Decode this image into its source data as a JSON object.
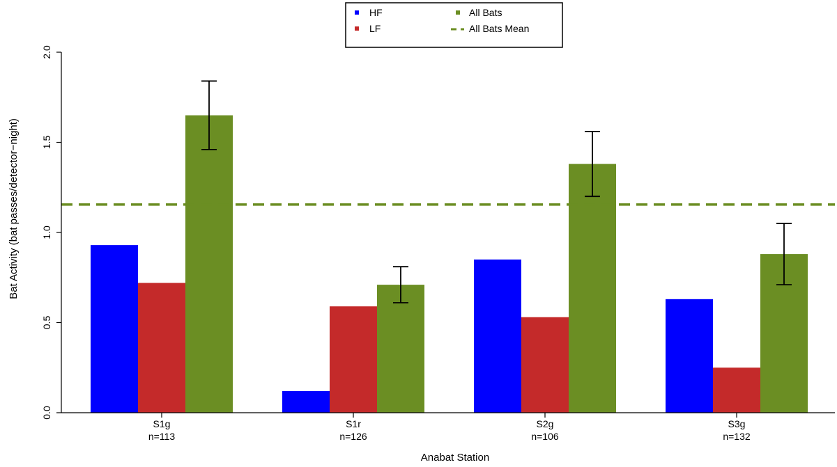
{
  "chart_data": {
    "type": "bar",
    "title": "",
    "xlabel": "Anabat Station",
    "ylabel": "Bat Activity (bat passes/detector−night)",
    "ylim": [
      0,
      2.0
    ],
    "yticks": [
      "0.0",
      "0.5",
      "1.0",
      "1.5",
      "2.0"
    ],
    "categories": [
      "S1g",
      "S1r",
      "S2g",
      "S3g"
    ],
    "category_sublabels": [
      "n=113",
      "n=126",
      "n=106",
      "n=132"
    ],
    "series": [
      {
        "name": "HF",
        "color": "#0000ff",
        "values": [
          0.93,
          0.12,
          0.85,
          0.63
        ]
      },
      {
        "name": "LF",
        "color": "#c42a2a",
        "values": [
          0.72,
          0.59,
          0.53,
          0.25
        ]
      },
      {
        "name": "All Bats",
        "color": "#6b8e23",
        "values": [
          1.65,
          0.71,
          1.38,
          0.88
        ],
        "error_low": [
          1.46,
          0.61,
          1.2,
          0.71
        ],
        "error_high": [
          1.84,
          0.81,
          1.56,
          1.05
        ]
      }
    ],
    "reference_line": {
      "name": "All Bats Mean",
      "value": 1.155,
      "color": "#6b8e23",
      "style": "dashed"
    },
    "legend": {
      "placement": "top-center",
      "entries": [
        "HF",
        "LF",
        "All Bats",
        "All Bats Mean"
      ]
    },
    "grid": false
  }
}
